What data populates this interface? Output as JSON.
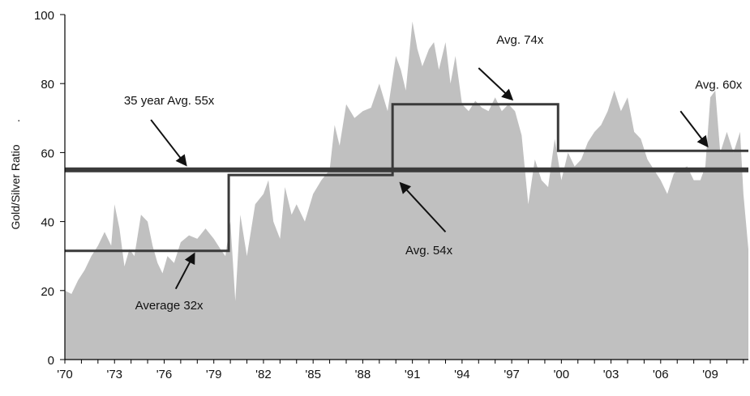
{
  "chart_data": {
    "type": "area",
    "title": "",
    "xlabel": "",
    "ylabel": "Gold/Silver Ratio",
    "ylabel_suffix": ".",
    "xlim": [
      1970,
      2011.3
    ],
    "ylim": [
      0,
      100
    ],
    "x_tick_labels": [
      "'70",
      "'73",
      "'76",
      "'79",
      "'82",
      "'85",
      "'88",
      "'91",
      "'94",
      "'97",
      "'00",
      "'03",
      "'06",
      "'09"
    ],
    "x_tick_values": [
      1970,
      1973,
      1976,
      1979,
      1982,
      1985,
      1988,
      1991,
      1994,
      1997,
      2000,
      2003,
      2006,
      2009
    ],
    "y_ticks": [
      0,
      20,
      40,
      60,
      80,
      100
    ],
    "grid": false,
    "colors": {
      "area": "#c0c0c0",
      "step": "#3a3a3a",
      "long_avg": "#3a3a3a"
    },
    "series": [
      {
        "kind": "area",
        "x": [
          1970.0,
          1970.4,
          1970.8,
          1971.2,
          1971.6,
          1972.0,
          1972.4,
          1972.8,
          1973.0,
          1973.3,
          1973.6,
          1973.9,
          1974.2,
          1974.6,
          1975.0,
          1975.3,
          1975.6,
          1975.9,
          1976.2,
          1976.6,
          1977.0,
          1977.5,
          1978.0,
          1978.5,
          1979.0,
          1979.4,
          1979.7,
          1980.0,
          1980.3,
          1980.6,
          1981.0,
          1981.5,
          1982.0,
          1982.3,
          1982.6,
          1983.0,
          1983.3,
          1983.7,
          1984.0,
          1984.5,
          1985.0,
          1985.5,
          1986.0,
          1986.3,
          1986.6,
          1987.0,
          1987.5,
          1988.0,
          1988.5,
          1989.0,
          1989.5,
          1990.0,
          1990.3,
          1990.6,
          1991.0,
          1991.3,
          1991.6,
          1992.0,
          1992.3,
          1992.6,
          1993.0,
          1993.3,
          1993.6,
          1994.0,
          1994.4,
          1994.8,
          1995.2,
          1995.6,
          1996.0,
          1996.4,
          1996.8,
          1997.2,
          1997.6,
          1998.0,
          1998.4,
          1998.8,
          1999.2,
          1999.6,
          2000.0,
          2000.4,
          2000.8,
          2001.2,
          2001.6,
          2002.0,
          2002.4,
          2002.8,
          2003.2,
          2003.6,
          2004.0,
          2004.4,
          2004.8,
          2005.2,
          2005.6,
          2006.0,
          2006.4,
          2006.8,
          2007.2,
          2007.6,
          2008.0,
          2008.4,
          2008.7,
          2009.0,
          2009.3,
          2009.6,
          2010.0,
          2010.4,
          2010.8,
          2011.0,
          2011.3
        ],
        "y": [
          20,
          19,
          23,
          26,
          30,
          33,
          37,
          33,
          45,
          38,
          27,
          32,
          30,
          42,
          40,
          33,
          28,
          25,
          30,
          28,
          34,
          36,
          35,
          38,
          35,
          32,
          30,
          40,
          17,
          42,
          30,
          45,
          48,
          52,
          40,
          35,
          50,
          42,
          45,
          40,
          48,
          52,
          55,
          68,
          62,
          74,
          70,
          72,
          73,
          80,
          72,
          88,
          84,
          78,
          98,
          90,
          85,
          90,
          92,
          84,
          92,
          80,
          88,
          74,
          72,
          75,
          73,
          72,
          76,
          72,
          74,
          72,
          65,
          45,
          58,
          52,
          50,
          64,
          52,
          60,
          56,
          58,
          63,
          66,
          68,
          72,
          78,
          72,
          76,
          66,
          64,
          58,
          55,
          52,
          48,
          54,
          55,
          56,
          52,
          52,
          56,
          76,
          78,
          60,
          66,
          60,
          66,
          48,
          32
        ]
      },
      {
        "kind": "step",
        "segments": [
          {
            "x0": 1970.0,
            "x1": 1979.9,
            "y": 31.5
          },
          {
            "x0": 1979.9,
            "x1": 1989.8,
            "y": 53.5
          },
          {
            "x0": 1989.8,
            "x1": 1999.8,
            "y": 74
          },
          {
            "x0": 1999.8,
            "x1": 2011.3,
            "y": 60.5
          }
        ]
      },
      {
        "kind": "hline",
        "y": 55
      }
    ],
    "annotations": [
      {
        "text": "Average 32x",
        "tx": 1976.3,
        "ty": 14.5,
        "ax": 1976.7,
        "ay": 20.5,
        "hx": 1977.8,
        "hy": 30.5
      },
      {
        "text": "35 year Avg. 55x",
        "tx": 1976.3,
        "ty": 74,
        "ax": 1975.2,
        "ay": 69.5,
        "hx": 1977.3,
        "hy": 56.5
      },
      {
        "text": "Avg. 54x",
        "tx": 1992.0,
        "ty": 30.5,
        "ax": 1993.0,
        "ay": 37.0,
        "hx": 1990.3,
        "hy": 51.0
      },
      {
        "text": "Avg. 74x",
        "tx": 1997.5,
        "ty": 91.5,
        "ax": 1995.0,
        "ay": 84.5,
        "hx": 1997.0,
        "hy": 75.5
      },
      {
        "text": "Avg. 60x",
        "tx": 2009.5,
        "ty": 78.5,
        "ax": 2007.2,
        "ay": 72.0,
        "hx": 2008.8,
        "hy": 62.0
      }
    ]
  }
}
